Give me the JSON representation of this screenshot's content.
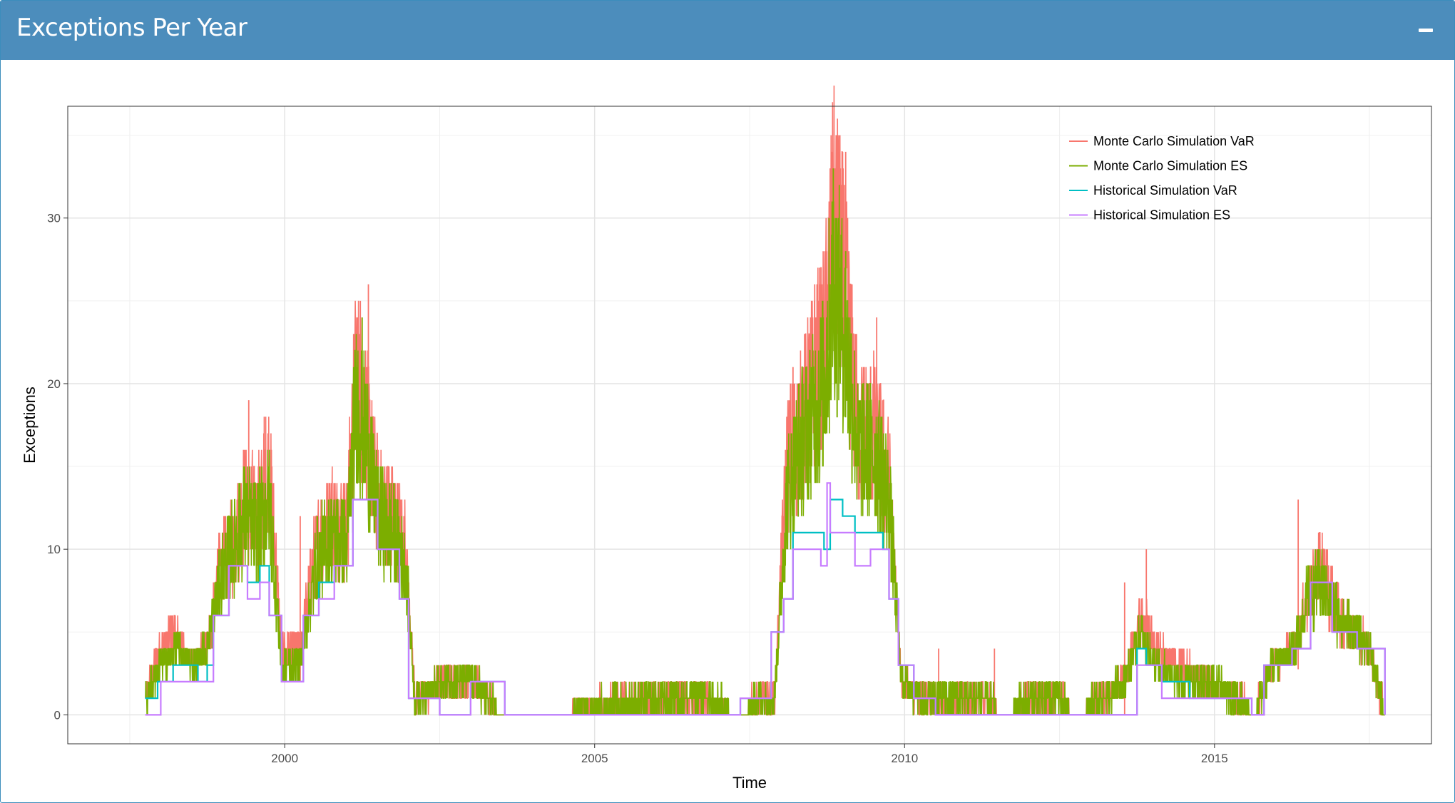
{
  "box": {
    "title": "Exceptions Per Year"
  },
  "chart_data": {
    "type": "line",
    "title": "",
    "xlabel": "Time",
    "ylabel": "Exceptions",
    "xlim": [
      1996.5,
      2018.5
    ],
    "ylim": [
      -1.75,
      36.75
    ],
    "x_ticks": [
      2000,
      2005,
      2010,
      2015
    ],
    "y_ticks": [
      0,
      10,
      20,
      30
    ],
    "grid": true,
    "legend_position": "top-right",
    "series": [
      {
        "name": "Monte Carlo Simulation VaR",
        "color": "#F8766D",
        "style": "noisy",
        "x": [
          1997.75,
          1998.0,
          1998.25,
          1998.5,
          1998.75,
          1998.95,
          1999.15,
          1999.35,
          1999.55,
          1999.75,
          1999.95,
          2000.25,
          2000.5,
          2000.75,
          2001.0,
          2001.15,
          2001.3,
          2001.5,
          2001.75,
          2001.95,
          2002.1,
          2002.6,
          2003.05,
          2003.5,
          2006.35,
          2006.8,
          2007.4,
          2007.6,
          2007.9,
          2008.1,
          2008.3,
          2008.5,
          2008.7,
          2008.85,
          2009.0,
          2009.25,
          2009.5,
          2009.75,
          2009.95,
          2010.3,
          2010.8,
          2011.3,
          2011.6,
          2012.0,
          2012.5,
          2012.75,
          2013.2,
          2013.55,
          2013.8,
          2014.05,
          2014.4,
          2014.9,
          2015.4,
          2015.65,
          2015.9,
          2016.3,
          2016.5,
          2016.7,
          2017.0,
          2017.5,
          2017.75
        ],
        "y": [
          1,
          4,
          5,
          3,
          4,
          9,
          10,
          13,
          12,
          15,
          4,
          4,
          10,
          12,
          11,
          21,
          18,
          13,
          12,
          10,
          1,
          2,
          2,
          0,
          1,
          1,
          0,
          1,
          1,
          15,
          17,
          20,
          22,
          30,
          27,
          17,
          17,
          14,
          2,
          1,
          1,
          1,
          0,
          1,
          1,
          0,
          1,
          2,
          6,
          4,
          3,
          2,
          1,
          0,
          3,
          4,
          7,
          9,
          6,
          4,
          0
        ],
        "spikes": [
          [
            1999.42,
            19
          ],
          [
            1999.67,
            18
          ],
          [
            2000.25,
            12
          ],
          [
            2001.22,
            25
          ],
          [
            2001.35,
            26
          ],
          [
            2008.2,
            21
          ],
          [
            2008.55,
            26
          ],
          [
            2008.9,
            35
          ],
          [
            2009.05,
            34
          ],
          [
            2009.55,
            24
          ],
          [
            2010.55,
            4
          ],
          [
            2011.45,
            4
          ],
          [
            2013.55,
            8
          ],
          [
            2013.9,
            10
          ],
          [
            2016.35,
            13
          ],
          [
            2017.75,
            2
          ]
        ]
      },
      {
        "name": "Monte Carlo Simulation ES",
        "color": "#7CAE00",
        "style": "noisy",
        "x": [
          1997.75,
          1998.0,
          1998.25,
          1998.5,
          1998.75,
          1998.95,
          1999.15,
          1999.35,
          1999.55,
          1999.75,
          1999.95,
          2000.25,
          2000.5,
          2000.75,
          2001.0,
          2001.15,
          2001.3,
          2001.5,
          2001.75,
          2001.95,
          2002.1,
          2002.6,
          2003.05,
          2003.5,
          2006.35,
          2006.8,
          2007.4,
          2007.6,
          2007.9,
          2008.1,
          2008.3,
          2008.5,
          2008.7,
          2008.85,
          2009.0,
          2009.25,
          2009.5,
          2009.75,
          2009.95,
          2010.3,
          2010.8,
          2011.3,
          2011.6,
          2012.0,
          2012.5,
          2012.75,
          2013.2,
          2013.55,
          2013.8,
          2014.05,
          2014.4,
          2014.9,
          2015.4,
          2015.65,
          2015.9,
          2016.3,
          2016.5,
          2016.7,
          2017.0,
          2017.5,
          2017.75
        ],
        "y": [
          1,
          3,
          4,
          3,
          4,
          8,
          10,
          12,
          11,
          13,
          3,
          3,
          9,
          11,
          10,
          19,
          17,
          12,
          11,
          9,
          1,
          2,
          2,
          0,
          1,
          1,
          0,
          1,
          1,
          13,
          16,
          18,
          20,
          26,
          24,
          16,
          16,
          13,
          2,
          1,
          1,
          1,
          0,
          1,
          1,
          0,
          1,
          2,
          5,
          3,
          2,
          2,
          1,
          0,
          3,
          4,
          7,
          8,
          6,
          4,
          0
        ],
        "spikes": [
          [
            2001.25,
            24
          ],
          [
            2008.85,
            33
          ],
          [
            2009.05,
            28
          ]
        ]
      },
      {
        "name": "Historical Simulation VaR",
        "color": "#00BFC4",
        "style": "step",
        "x": [
          1997.75,
          1997.95,
          1998.2,
          1998.6,
          1998.75,
          1998.85,
          1999.1,
          1999.4,
          1999.6,
          1999.75,
          1999.95,
          2000.3,
          2000.55,
          2000.8,
          2001.1,
          2001.25,
          2001.5,
          2001.85,
          2002.0,
          2002.5,
          2003.0,
          2003.55,
          2007.35,
          2007.6,
          2007.85,
          2008.05,
          2008.2,
          2008.6,
          2008.7,
          2008.8,
          2009.0,
          2009.2,
          2009.65,
          2009.75,
          2009.9,
          2010.15,
          2010.5,
          2013.75,
          2013.9,
          2014.15,
          2014.6,
          2015.6,
          2015.8,
          2016.25,
          2016.55,
          2016.9,
          2017.3,
          2017.75
        ],
        "y": [
          1,
          2,
          3,
          2,
          3,
          6,
          9,
          8,
          9,
          6,
          2,
          6,
          8,
          9,
          13,
          13,
          10,
          7,
          1,
          0,
          2,
          0,
          1,
          1,
          5,
          7,
          11,
          11,
          10,
          13,
          12,
          11,
          10,
          7,
          3,
          1,
          0,
          4,
          3,
          2,
          1,
          0,
          3,
          4,
          8,
          5,
          4,
          0
        ]
      },
      {
        "name": "Historical Simulation ES",
        "color": "#C77CFF",
        "style": "step",
        "x": [
          1997.75,
          1998.0,
          1998.25,
          1998.75,
          1998.85,
          1999.1,
          1999.4,
          1999.6,
          1999.75,
          1999.95,
          2000.3,
          2000.55,
          2000.8,
          2001.1,
          2001.25,
          2001.5,
          2001.85,
          2002.0,
          2002.5,
          2003.0,
          2003.55,
          2007.35,
          2007.6,
          2007.85,
          2008.05,
          2008.2,
          2008.65,
          2008.75,
          2008.8,
          2009.0,
          2009.2,
          2009.45,
          2009.65,
          2009.75,
          2009.9,
          2010.15,
          2010.5,
          2013.75,
          2013.9,
          2014.15,
          2014.6,
          2015.6,
          2015.8,
          2016.25,
          2016.55,
          2016.9,
          2017.3,
          2017.75
        ],
        "y": [
          0,
          2,
          2,
          2,
          6,
          9,
          7,
          8,
          6,
          2,
          6,
          7,
          9,
          13,
          13,
          10,
          7,
          1,
          0,
          2,
          0,
          1,
          1,
          5,
          7,
          10,
          9,
          14,
          11,
          11,
          9,
          10,
          10,
          7,
          3,
          1,
          0,
          3,
          3,
          1,
          1,
          0,
          3,
          4,
          8,
          5,
          4,
          0
        ]
      }
    ]
  }
}
